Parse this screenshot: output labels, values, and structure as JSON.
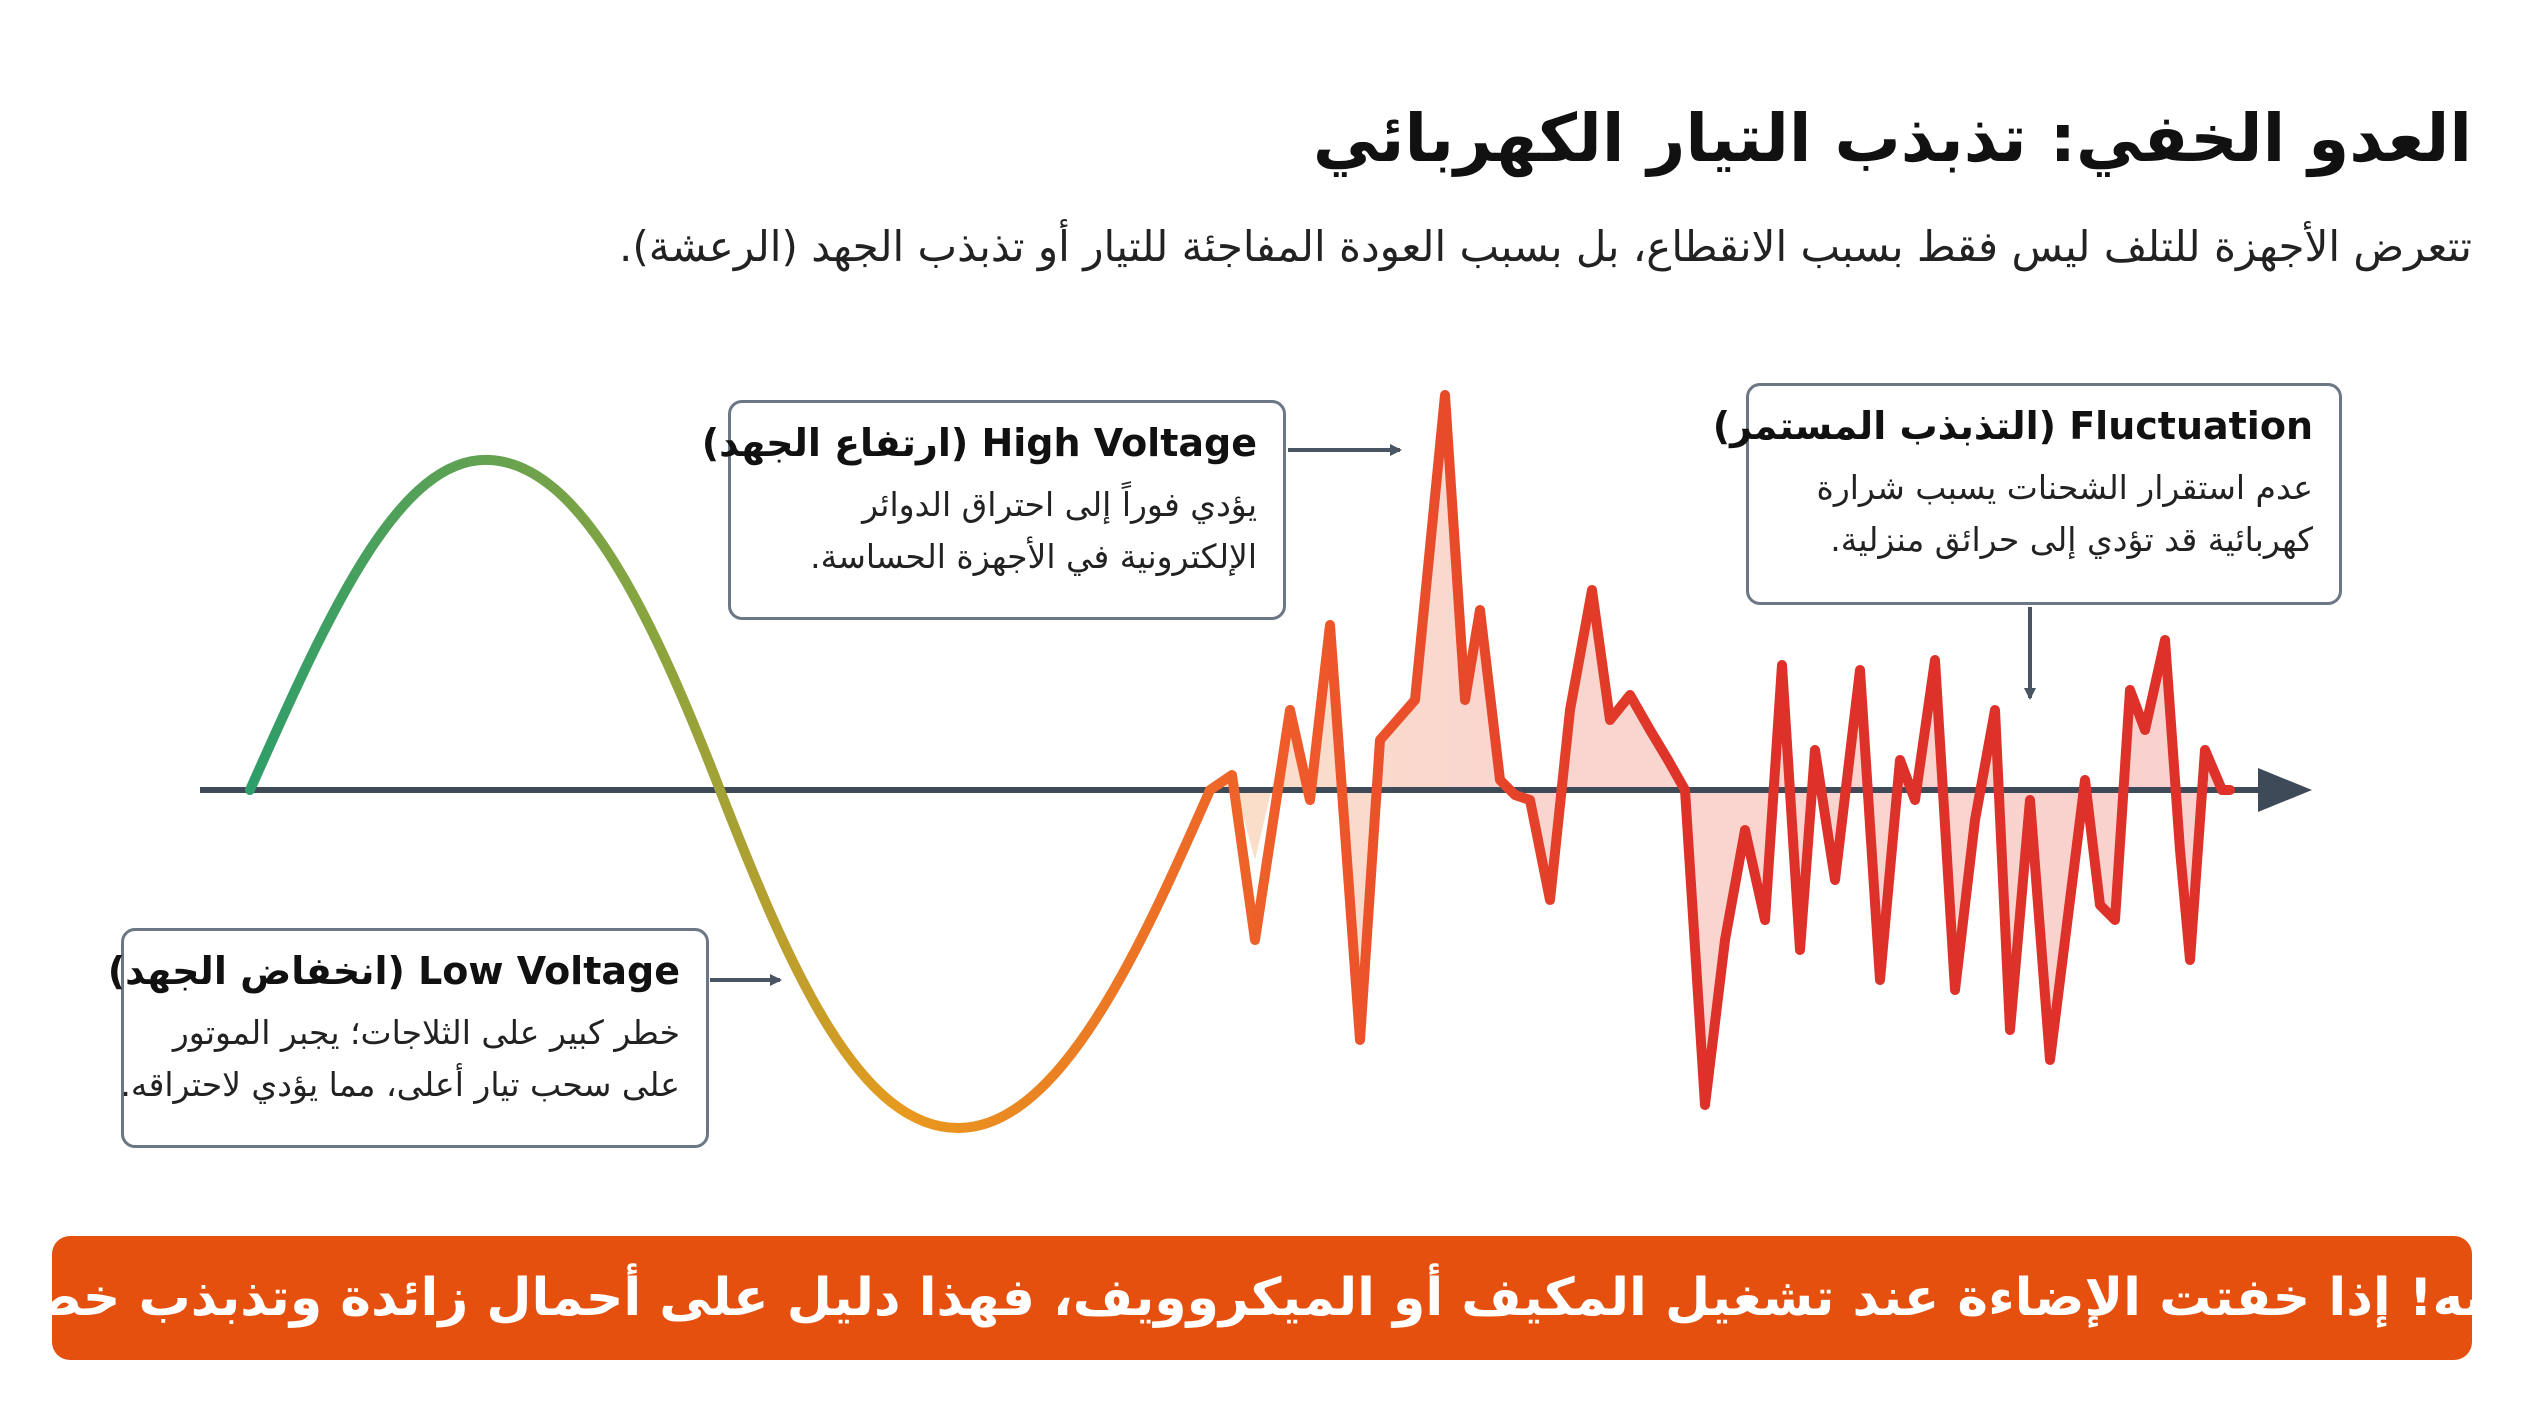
{
  "header": {
    "title": "العدو الخفي: تذبذب التيار الكهربائي",
    "subtitle": "تتعرض الأجهزة للتلف ليس فقط بسبب الانقطاع، بل بسبب العودة المفاجئة للتيار أو تذبذب الجهد (الرعشة)."
  },
  "callouts": {
    "high_voltage": {
      "title": "High Voltage (ارتفاع الجهد)",
      "lines": [
        "يؤدي فوراً إلى احتراق الدوائر",
        "الإلكترونية في الأجهزة الحساسة."
      ]
    },
    "fluctuation": {
      "title": "Fluctuation (التذبذب المستمر)",
      "lines": [
        "عدم استقرار الشحنات يسبب شرارة",
        "كهربائية قد تؤدي إلى حرائق منزلية."
      ]
    },
    "low_voltage": {
      "title": "Low Voltage (انخفاض الجهد)",
      "lines": [
        "خطر كبير على الثلاجات؛ يجبر الموتور",
        "على سحب تيار أعلى، مما يؤدي لاحتراقه."
      ]
    }
  },
  "banner": {
    "text": "انتبه! إذا خفتت الإضاءة عند تشغيل المكيف أو الميكروويف، فهذا دليل على أحمال زائدة وتذبذب خطر."
  },
  "colors": {
    "stable": "#2e9e6a",
    "transition": "#e89a1e",
    "danger": "#e0392a",
    "axis": "#3f4a59",
    "banner": "#e5500f"
  }
}
